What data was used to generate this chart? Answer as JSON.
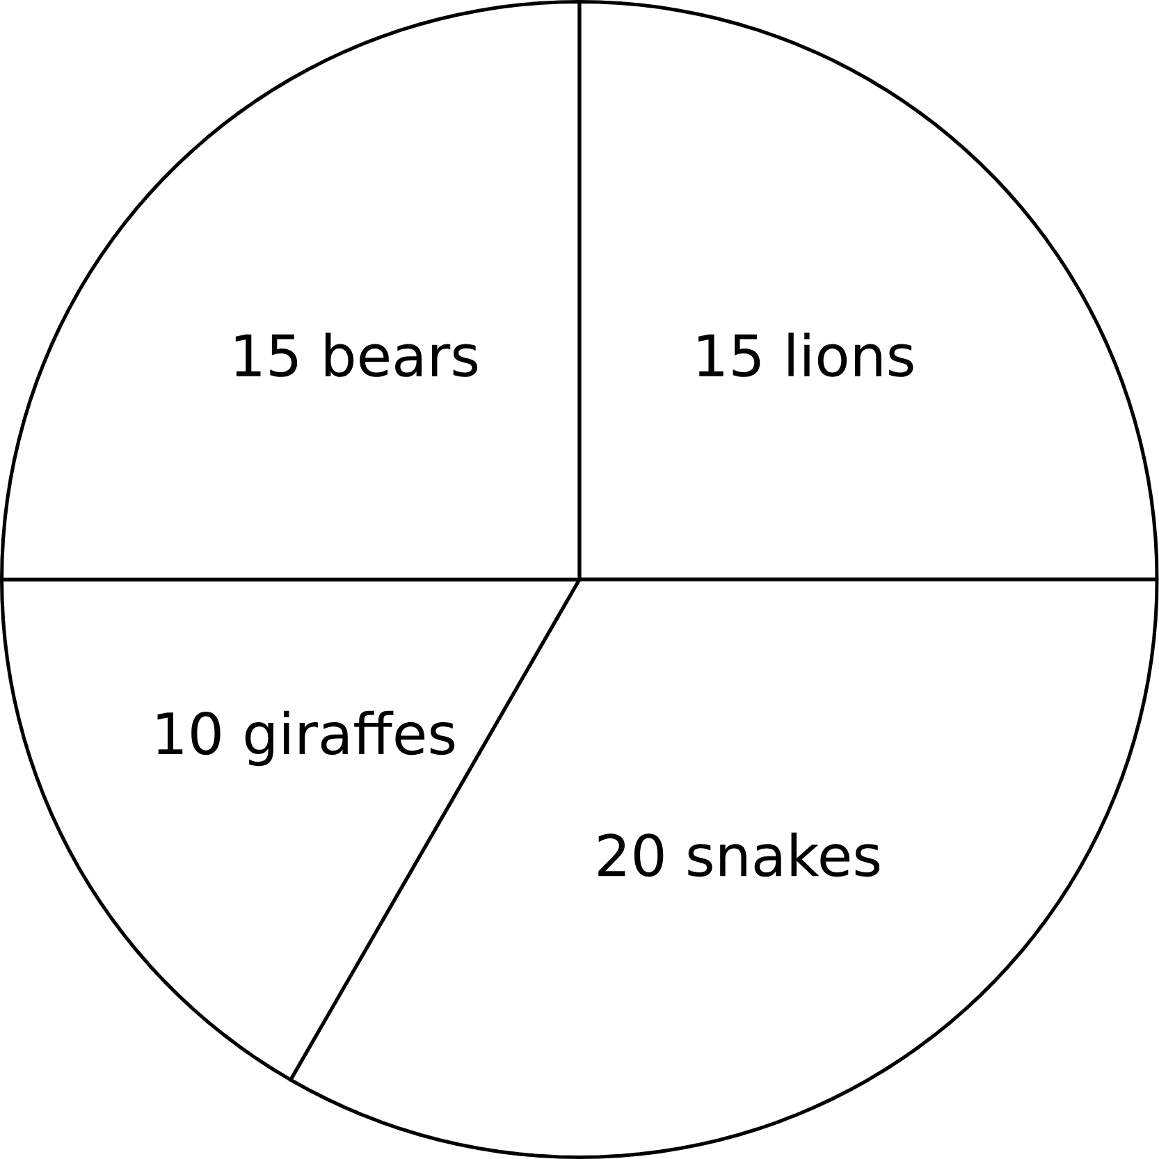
{
  "chart_data": {
    "type": "pie",
    "categories": [
      "lions",
      "snakes",
      "giraffes",
      "bears"
    ],
    "values": [
      15,
      20,
      10,
      15
    ],
    "data_labels": true,
    "colors": [
      "#ffffff",
      "#ffffff",
      "#ffffff",
      "#ffffff"
    ]
  }
}
